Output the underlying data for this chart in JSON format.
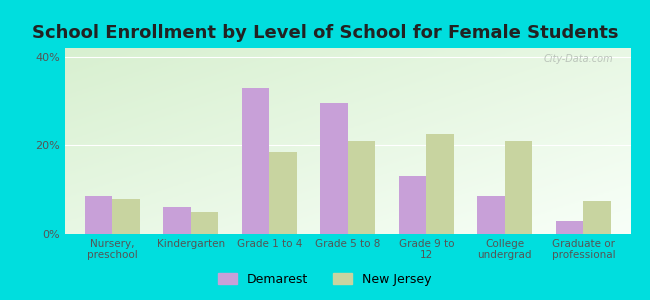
{
  "title": "School Enrollment by Level of School for Female Students",
  "categories": [
    "Nursery,\npreschool",
    "Kindergarten",
    "Grade 1 to 4",
    "Grade 5 to 8",
    "Grade 9 to\n12",
    "College\nundergrad",
    "Graduate or\nprofessional"
  ],
  "demarest": [
    8.5,
    6.0,
    33.0,
    29.5,
    13.0,
    8.5,
    3.0
  ],
  "new_jersey": [
    8.0,
    5.0,
    18.5,
    21.0,
    22.5,
    21.0,
    7.5
  ],
  "demarest_color": "#c8a0d8",
  "new_jersey_color": "#c8d4a0",
  "ylim": [
    0,
    42
  ],
  "yticks": [
    0,
    20,
    40
  ],
  "ytick_labels": [
    "0%",
    "20%",
    "40%"
  ],
  "bar_width": 0.35,
  "title_fontsize": 13,
  "watermark": "City-Data.com",
  "outer_bg": "#00dede",
  "plot_bg": "#eef8ee"
}
